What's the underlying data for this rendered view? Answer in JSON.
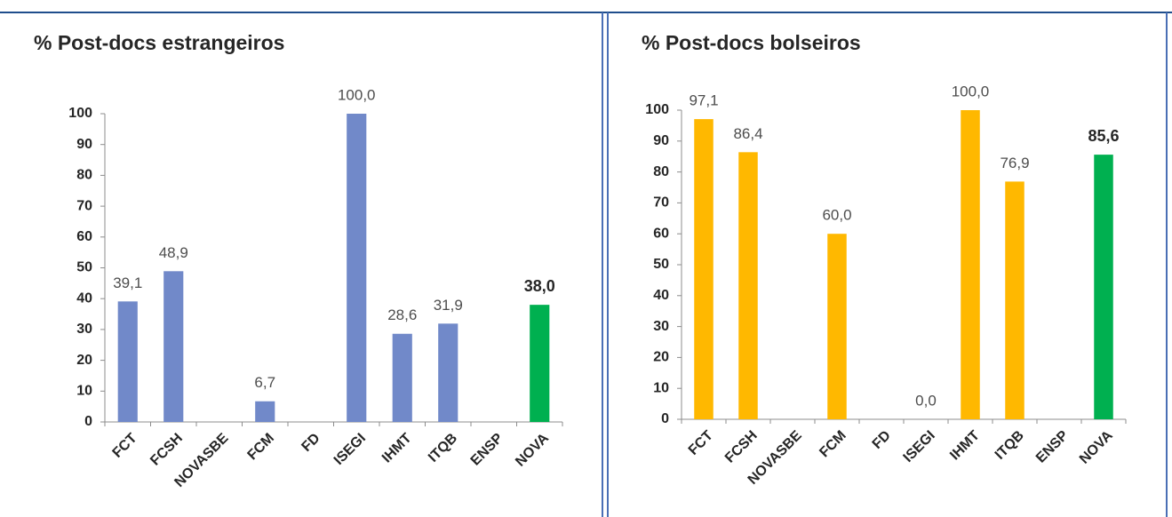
{
  "chart_data": [
    {
      "type": "bar",
      "title": "% Post-docs estrangeiros",
      "categories": [
        "FCT",
        "FCSH",
        "NOVASBE",
        "FCM",
        "FD",
        "ISEGI",
        "IHMT",
        "ITQB",
        "ENSP",
        "NOVA"
      ],
      "values": [
        39.1,
        48.9,
        null,
        6.7,
        null,
        100.0,
        28.6,
        31.9,
        null,
        38.0
      ],
      "value_labels": [
        "39,1",
        "48,9",
        null,
        "6,7",
        null,
        "100,0",
        "28,6",
        "31,9",
        null,
        "38,0"
      ],
      "colors": [
        "#7189c9",
        "#7189c9",
        "#7189c9",
        "#7189c9",
        "#7189c9",
        "#7189c9",
        "#7189c9",
        "#7189c9",
        "#7189c9",
        "#00b050"
      ],
      "ylim": [
        0,
        100
      ],
      "yticks": [
        0,
        10,
        20,
        30,
        40,
        50,
        60,
        70,
        80,
        90,
        100
      ],
      "grid": false
    },
    {
      "type": "bar",
      "title": "% Post-docs bolseiros",
      "categories": [
        "FCT",
        "FCSH",
        "NOVASBE",
        "FCM",
        "FD",
        "ISEGI",
        "IHMT",
        "ITQB",
        "ENSP",
        "NOVA"
      ],
      "values": [
        97.1,
        86.4,
        null,
        60.0,
        null,
        0.0,
        100.0,
        76.9,
        null,
        85.6
      ],
      "value_labels": [
        "97,1",
        "86,4",
        null,
        "60,0",
        null,
        "0,0",
        "100,0",
        "76,9",
        null,
        "85,6"
      ],
      "colors": [
        "#ffb800",
        "#ffb800",
        "#ffb800",
        "#ffb800",
        "#ffb800",
        "#ffb800",
        "#ffb800",
        "#ffb800",
        "#ffb800",
        "#00b050"
      ],
      "ylim": [
        0,
        100
      ],
      "yticks": [
        0,
        10,
        20,
        30,
        40,
        50,
        60,
        70,
        80,
        90,
        100
      ],
      "grid": false
    }
  ]
}
